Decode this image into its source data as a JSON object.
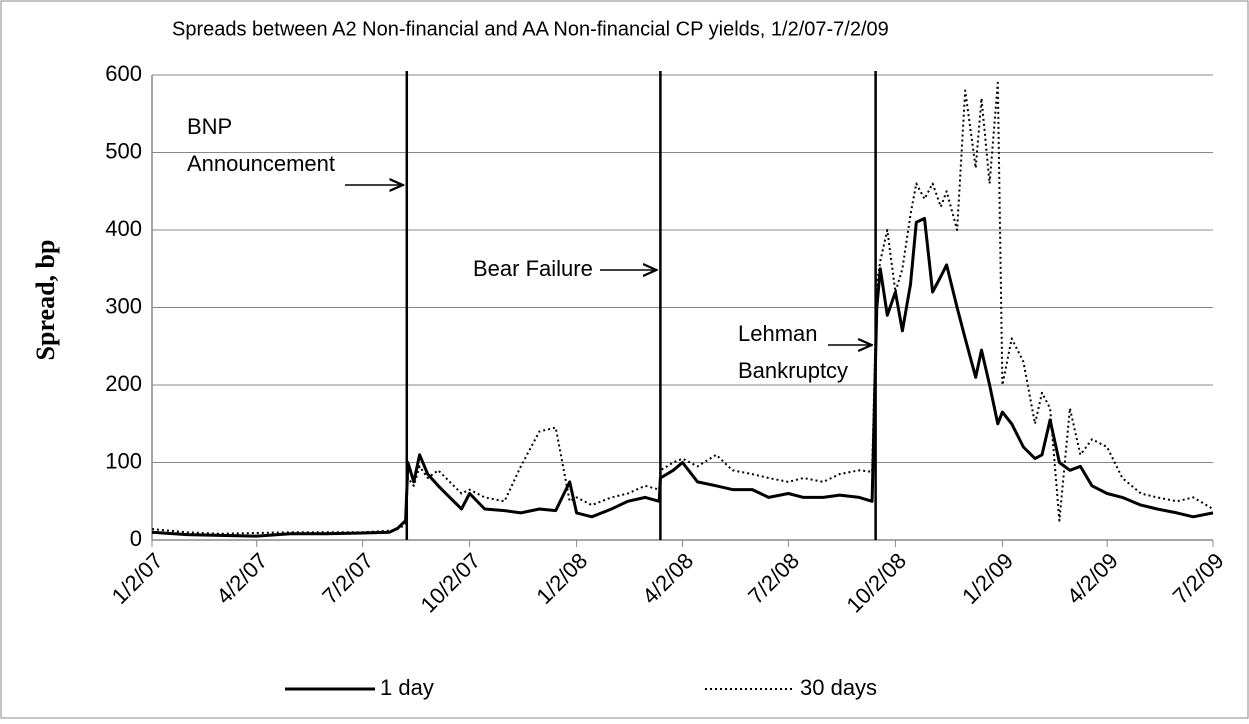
{
  "chart_data": {
    "type": "line",
    "title": "Spreads between A2 Non-financial and AA Non-financial CP yields, 1/2/07-7/2/09",
    "y_label": "Spread, bp",
    "x": [
      "1/2/07",
      "2/1/07",
      "3/1/07",
      "4/2/07",
      "5/1/07",
      "6/1/07",
      "7/2/07",
      "7/25/07",
      "8/1/07",
      "8/8/07",
      "8/10/07",
      "8/15/07",
      "8/20/07",
      "8/27/07",
      "9/5/07",
      "9/15/07",
      "9/25/07",
      "10/2/07",
      "10/15/07",
      "11/1/07",
      "11/15/07",
      "12/1/07",
      "12/15/07",
      "12/27/07",
      "1/2/08",
      "1/15/08",
      "2/1/08",
      "2/15/08",
      "3/1/08",
      "3/13/08",
      "3/14/08",
      "3/25/08",
      "4/2/08",
      "4/15/08",
      "5/1/08",
      "5/15/08",
      "6/1/08",
      "6/15/08",
      "7/2/08",
      "7/15/08",
      "8/1/08",
      "8/15/08",
      "9/1/08",
      "9/12/08",
      "9/16/08",
      "9/19/08",
      "9/25/08",
      "10/2/08",
      "10/8/08",
      "10/15/08",
      "10/20/08",
      "10/27/08",
      "11/3/08",
      "11/10/08",
      "11/15/08",
      "11/24/08",
      "12/1/08",
      "12/10/08",
      "12/15/08",
      "12/22/08",
      "12/29/08",
      "1/2/09",
      "1/10/09",
      "1/20/09",
      "1/30/09",
      "2/5/09",
      "2/12/09",
      "2/20/09",
      "3/1/09",
      "3/10/09",
      "3/20/09",
      "4/2/09",
      "4/15/09",
      "5/1/09",
      "5/15/09",
      "6/1/09",
      "6/15/09",
      "7/2/09"
    ],
    "series": [
      {
        "name": "1 day",
        "color": "#000000",
        "dash": "solid",
        "values": [
          10,
          7,
          6,
          5,
          8,
          8,
          9,
          10,
          15,
          25,
          100,
          75,
          110,
          85,
          70,
          55,
          40,
          60,
          40,
          38,
          35,
          40,
          38,
          75,
          35,
          30,
          40,
          50,
          55,
          50,
          80,
          90,
          100,
          75,
          70,
          65,
          65,
          55,
          60,
          55,
          55,
          58,
          55,
          50,
          300,
          350,
          290,
          320,
          270,
          330,
          410,
          415,
          320,
          340,
          355,
          300,
          260,
          210,
          245,
          200,
          150,
          165,
          150,
          120,
          105,
          110,
          155,
          100,
          90,
          95,
          70,
          60,
          55,
          45,
          40,
          35,
          30,
          35
        ]
      },
      {
        "name": "30 days",
        "color": "#000000",
        "dash": "dotted",
        "values": [
          14,
          10,
          8,
          9,
          10,
          10,
          10,
          12,
          14,
          20,
          80,
          70,
          95,
          80,
          90,
          75,
          60,
          65,
          55,
          50,
          95,
          140,
          145,
          50,
          55,
          45,
          55,
          60,
          70,
          65,
          90,
          100,
          105,
          95,
          110,
          90,
          85,
          80,
          75,
          80,
          75,
          85,
          90,
          88,
          330,
          360,
          400,
          320,
          350,
          420,
          460,
          440,
          460,
          430,
          450,
          400,
          580,
          480,
          570,
          460,
          590,
          200,
          260,
          230,
          150,
          190,
          170,
          25,
          170,
          110,
          130,
          120,
          80,
          60,
          55,
          50,
          55,
          40
        ]
      }
    ],
    "xlim": [
      "1/2/07",
      "7/2/09"
    ],
    "xticks": [
      "1/2/07",
      "4/2/07",
      "7/2/07",
      "10/2/07",
      "1/2/08",
      "4/2/08",
      "7/2/08",
      "10/2/08",
      "1/2/09",
      "4/2/09",
      "7/2/09"
    ],
    "ylim": [
      0,
      600
    ],
    "yticks": [
      0,
      100,
      200,
      300,
      400,
      500,
      600
    ],
    "grid": true,
    "legend": "bottom",
    "events": [
      {
        "x": "8/9/07",
        "text": [
          "BNP",
          "Announcement"
        ]
      },
      {
        "x": "3/14/08",
        "text": [
          "Bear Failure"
        ]
      },
      {
        "x": "9/15/08",
        "text": [
          "Lehman",
          "Bankruptcy"
        ]
      }
    ]
  }
}
